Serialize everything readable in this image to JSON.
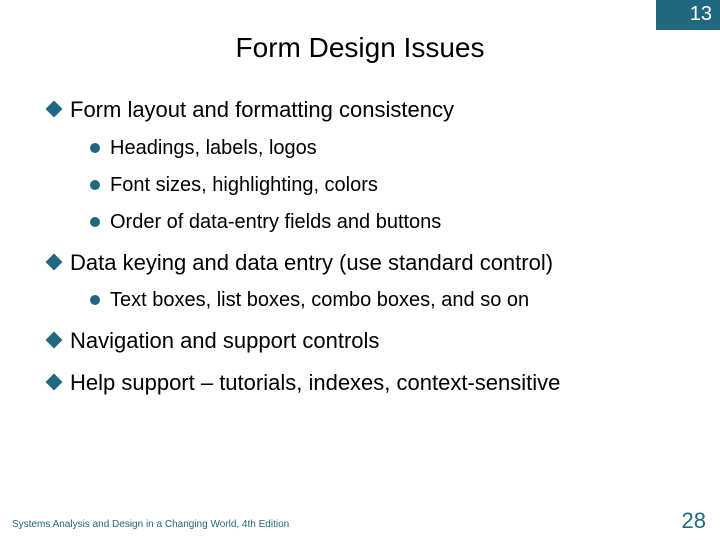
{
  "colors": {
    "corner_bg": "#206880",
    "corner_text": "#ffffff",
    "title_text": "#000000",
    "body_text": "#000000",
    "diamond_fill": "#206880",
    "circle_fill": "#206880",
    "footer_text": "#206880",
    "pagenum_text": "#206880",
    "background": "#ffffff"
  },
  "corner_number": "13",
  "title": "Form Design Issues",
  "items": [
    {
      "text": "Form layout and formatting consistency",
      "children": [
        {
          "text": "Headings, labels, logos"
        },
        {
          "text": "Font sizes, highlighting, colors"
        },
        {
          "text": "Order of data-entry fields and buttons"
        }
      ]
    },
    {
      "text": "Data keying and data entry (use standard control)",
      "children": [
        {
          "text": "Text boxes, list boxes, combo boxes, and so on"
        }
      ]
    },
    {
      "text": "Navigation and support controls",
      "children": []
    },
    {
      "text": "Help support – tutorials, indexes, context-sensitive",
      "children": []
    }
  ],
  "footer_left": "Systems Analysis and Design in a Changing World, 4th Edition",
  "page_number": "28"
}
